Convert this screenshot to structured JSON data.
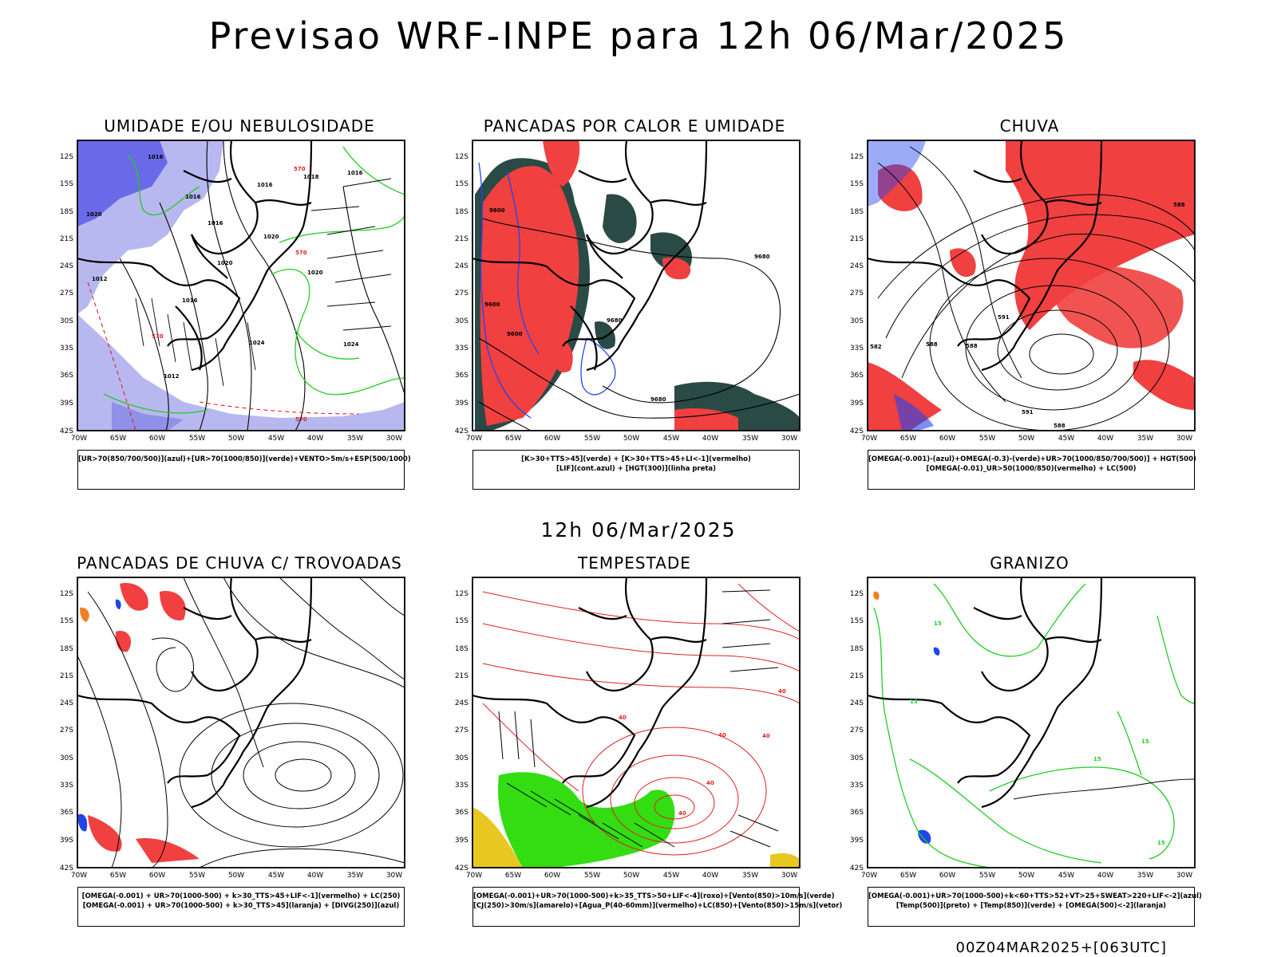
{
  "header": {
    "title": "Previsao WRF-INPE  para 12h 06/Mar/2025",
    "mid_date": "12h 06/Mar/2025",
    "run_info": "00Z04MAR2025+[063UTC]"
  },
  "axes": {
    "lat_labels": [
      "12S",
      "15S",
      "18S",
      "21S",
      "24S",
      "27S",
      "30S",
      "33S",
      "36S",
      "39S",
      "42S"
    ],
    "lon_labels": [
      "70W",
      "65W",
      "60W",
      "55W",
      "50W",
      "45W",
      "40W",
      "35W",
      "30W"
    ]
  },
  "panels": [
    {
      "id": "umidade",
      "title": "UMIDADE E/OU NEBULOSIDADE",
      "legend": [
        "[UR>70(850/700/500)](azul)+[UR>70(1000/850)](verde)+VENTO>5m/s+ESP(500/1000)"
      ],
      "contour_labels": [
        "1016",
        "1016",
        "1018",
        "1016",
        "1020",
        "1020",
        "1016",
        "1024",
        "1012",
        "1020",
        "1024",
        "1016",
        "1020",
        "1016",
        "1012",
        "570",
        "570",
        "570",
        "570"
      ]
    },
    {
      "id": "pancadas-calor",
      "title": "PANCADAS POR CALOR E UMIDADE",
      "legend": [
        "[K>30+TTS>45](verde)  +  [K>30+TTS>45+LI<-1](vermelho)",
        "[LIF](cont.azul)  +  [HGT(300)](linha preta)"
      ],
      "contour_labels": [
        "9600",
        "9680",
        "9600",
        "9600",
        "9680",
        "9680"
      ]
    },
    {
      "id": "chuva",
      "title": "CHUVA",
      "legend": [
        "[OMEGA(-0.001)-(azul)+OMEGA(-0.3)-(verde)+UR>70(1000/850/700/500)]  +  HGT(500)",
        "[OMEGA(-0.01)_UR>50(1000/850)(vermelho)  +  LC(500)"
      ],
      "contour_labels": [
        "588",
        "582",
        "588",
        "591",
        "588",
        "591",
        "588"
      ]
    },
    {
      "id": "pancadas-trovoadas",
      "title": "PANCADAS DE CHUVA C/ TROVOADAS",
      "legend": [
        "[OMEGA(-0.001)  +  UR>70(1000-500)  +  k>30_TTS>45+LIF<-1](vermelho)  +  LC(250)",
        "[OMEGA(-0.001)  +  UR>70(1000-500)  +  k>30_TTS>45](laranja)  +  [DIVG(250)](azul)"
      ]
    },
    {
      "id": "tempestade",
      "title": "TEMPESTADE",
      "legend": [
        "[OMEGA(-0.001)+UR>70(1000-500)+k>35_TTS>50+LIF<-4](roxo)+[Vento(850)>10m/s](verde)",
        "[CJ(250)>30m/s](amarelo)+[Agua_P(40-60mm)](vermelho)+LC(850)+[Vento(850)>15m/s](vetor)"
      ],
      "contour_labels": [
        "40",
        "40",
        "40",
        "40",
        "40",
        "40"
      ]
    },
    {
      "id": "granizo",
      "title": "GRANIZO",
      "legend": [
        "[OMEGA(-0.001)+UR>70(1000-500)+k<60+TTS>52+VT>25+SWEAT>220+LIF<-2](azul)",
        "[Temp(500)](preto)  +  [Temp(850)](verde)  +  [OMEGA(500)<-2](laranja)"
      ],
      "contour_labels": [
        "15",
        "15",
        "15",
        "15",
        "15"
      ]
    }
  ],
  "colors": {
    "blue_fill": "#6a6ae8",
    "light_blue_fill": "#b8b8f0",
    "green_line": "#22cc22",
    "red_fill": "#f04040",
    "dark_green_fill": "#2a4a45",
    "yellow_fill": "#e8c820",
    "bright_green_fill": "#33dd11",
    "orange": "#f08020"
  }
}
